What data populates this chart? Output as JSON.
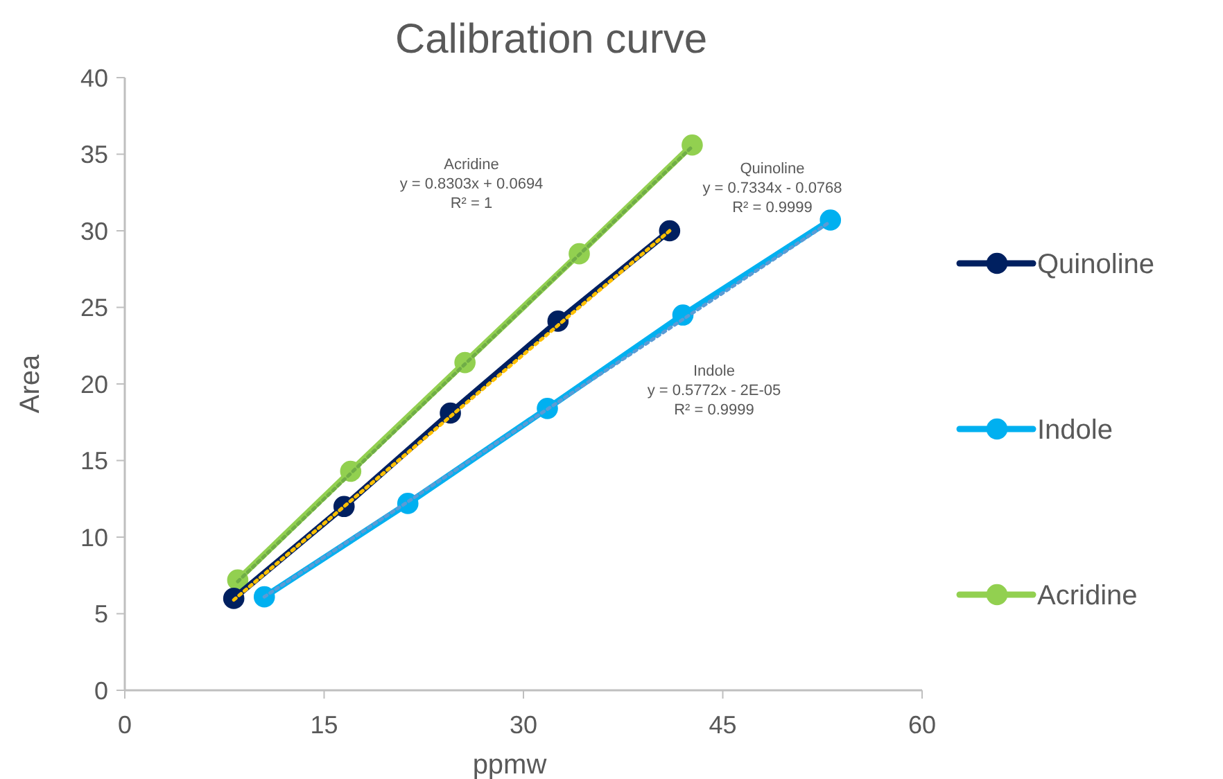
{
  "chart_data": {
    "type": "line",
    "title": "Calibration curve",
    "xlabel": "ppmw",
    "ylabel": "Area",
    "xlim": [
      0,
      60
    ],
    "xticks": [
      0,
      15,
      30,
      45,
      60
    ],
    "ylim": [
      0,
      40
    ],
    "yticks": [
      0,
      5,
      10,
      15,
      20,
      25,
      30,
      35,
      40
    ],
    "grid": false,
    "legend": "right",
    "marker": "circle",
    "line_style": "solid",
    "series": [
      {
        "name": "Quinoline",
        "color": "#002060",
        "x": [
          8.2,
          16.5,
          24.5,
          32.6,
          41.0
        ],
        "values": [
          6.0,
          12.0,
          18.1,
          24.1,
          30.0
        ]
      },
      {
        "name": "Indole",
        "color": "#00b0f0",
        "x": [
          10.5,
          21.3,
          31.8,
          42.0,
          53.1
        ],
        "values": [
          6.1,
          12.2,
          18.4,
          24.5,
          30.7
        ]
      },
      {
        "name": "Acridine",
        "color": "#92d050",
        "x": [
          8.5,
          17.0,
          25.6,
          34.2,
          42.7
        ],
        "values": [
          7.2,
          14.3,
          21.4,
          28.5,
          35.6
        ]
      },
      {
        "type": "line",
        "color": "#ffc000",
        "line_style": "dotted",
        "marker": "none",
        "x": [
          8.2,
          41.0
        ],
        "values": [
          5.9,
          30.0
        ]
      },
      {
        "type": "line",
        "color": "#5b9bd5",
        "line_style": "dotted",
        "marker": "none",
        "x": [
          10.5,
          53.1
        ],
        "values": [
          6.1,
          30.6
        ]
      },
      {
        "type": "line",
        "color": "#70ad47",
        "line_style": "dotted",
        "marker": "none",
        "x": [
          8.5,
          42.7
        ],
        "values": [
          7.1,
          35.5
        ]
      }
    ],
    "annotations": [
      "Acridine\ny = 0.8303x + 0.0694\nR² = 1",
      "Quinoline\ny = 0.7334x - 0.0768\nR² = 0.9999",
      "Indole\ny = 0.5772x - 2E-05\nR² = 0.9999"
    ]
  }
}
